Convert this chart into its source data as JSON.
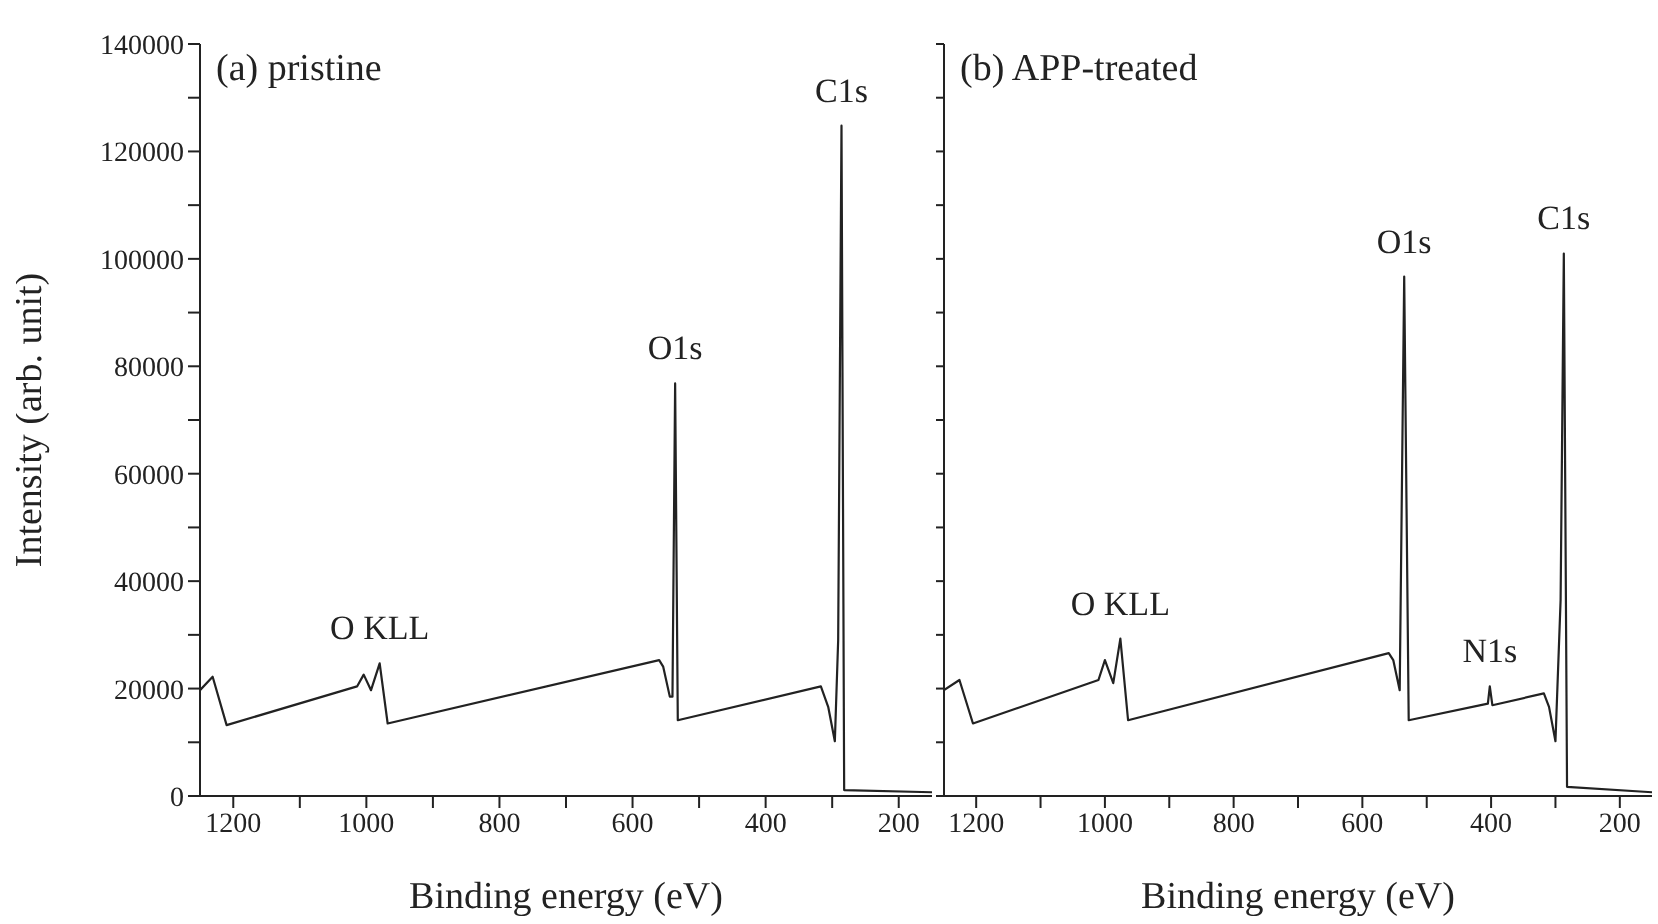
{
  "chart_data": [
    {
      "type": "line",
      "title": "(a) pristine",
      "xlabel": "Binding energy (eV)",
      "ylabel": "Intensity (arb. unit)",
      "xlim": [
        1250,
        150
      ],
      "xticks": [
        1200,
        {
          "value": 1100,
          "label": null
        },
        1000,
        {
          "value": 900,
          "label": null
        },
        800,
        {
          "value": 700,
          "label": null
        },
        600,
        {
          "value": 500,
          "label": null
        },
        400,
        {
          "value": 300,
          "label": null
        },
        200
      ],
      "ylim": [
        0,
        140000
      ],
      "yticks": [
        0,
        {
          "value": 10000,
          "label": null
        },
        20000,
        {
          "value": 30000,
          "label": null
        },
        40000,
        {
          "value": 50000,
          "label": null
        },
        60000,
        {
          "value": 70000,
          "label": null
        },
        80000,
        {
          "value": 90000,
          "label": null
        },
        100000,
        {
          "value": 110000,
          "label": null
        },
        120000,
        {
          "value": 130000,
          "label": null
        },
        140000
      ],
      "grid": false,
      "marker": "none",
      "line_style": "solid",
      "series": [
        {
          "color": "#222222",
          "x": [
            1250,
            1231,
            1210,
            1014,
            1004,
            993,
            980,
            968,
            560,
            554,
            544,
            540,
            536,
            532,
            317,
            306,
            296,
            291,
            286,
            282,
            150
          ],
          "values": [
            19700,
            22200,
            13200,
            20400,
            22600,
            19700,
            24700,
            13500,
            25300,
            24100,
            18500,
            18500,
            76800,
            14100,
            20400,
            16600,
            10200,
            29000,
            124800,
            1100,
            700
          ]
        }
      ],
      "annotations": [
        {
          "text": "O KLL",
          "x": 980,
          "y": 24700
        },
        {
          "text": "O1s",
          "x": 536,
          "y": 76800
        },
        {
          "text": "C1s",
          "x": 286,
          "y": 124800
        }
      ]
    },
    {
      "type": "line",
      "title": "(b) APP-treated",
      "xlabel": "Binding energy (eV)",
      "tick_labels": "x",
      "xlim": [
        1250,
        150
      ],
      "xticks": [
        1200,
        {
          "value": 1100,
          "label": null
        },
        1000,
        {
          "value": 900,
          "label": null
        },
        800,
        {
          "value": 700,
          "label": null
        },
        600,
        {
          "value": 500,
          "label": null
        },
        400,
        {
          "value": 300,
          "label": null
        },
        200
      ],
      "ylim": [
        0,
        140000
      ],
      "yticks": [
        0,
        10000,
        20000,
        30000,
        40000,
        50000,
        60000,
        70000,
        80000,
        90000,
        100000,
        110000,
        120000,
        130000,
        140000
      ],
      "grid": false,
      "marker": "none",
      "line_style": "solid",
      "series": [
        {
          "color": "#222222",
          "x": [
            1250,
            1226,
            1205,
            1010,
            1000,
            987,
            976,
            964,
            559,
            552,
            542,
            535,
            528,
            405,
            402,
            398,
            318,
            310,
            300,
            292,
            287,
            282,
            150
          ],
          "values": [
            19700,
            21600,
            13500,
            21600,
            25300,
            21000,
            29300,
            14100,
            26600,
            25300,
            19700,
            96700,
            14100,
            17200,
            20400,
            16900,
            19100,
            16600,
            10200,
            36500,
            101000,
            1700,
            700
          ]
        }
      ],
      "annotations": [
        {
          "text": "O KLL",
          "x": 976,
          "y": 29300
        },
        {
          "text": "O1s",
          "x": 535,
          "y": 96700
        },
        {
          "text": "N1s",
          "x": 402,
          "y": 20400
        },
        {
          "text": "C1s",
          "x": 287,
          "y": 101000
        }
      ]
    }
  ]
}
